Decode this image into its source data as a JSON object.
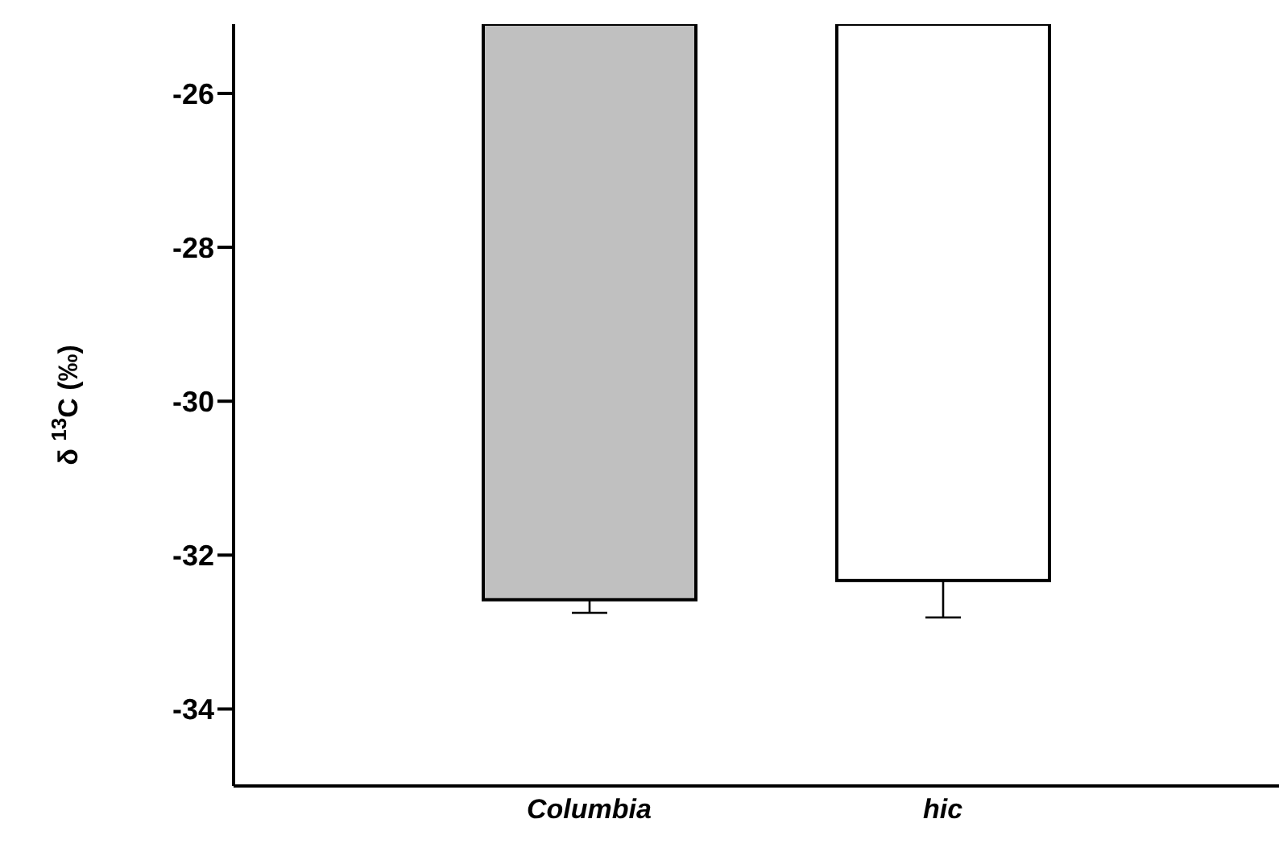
{
  "chart_data": {
    "type": "bar",
    "ylabel": "δ $^{13}$C (‰)",
    "categories": [
      "Columbia",
      "hic"
    ],
    "values": [
      -32.58,
      -32.33
    ],
    "colors": [
      "#c0c0c0",
      "#ffffff"
    ],
    "errors": [
      [
        -32.75,
        -32.58
      ],
      [
        -32.81,
        -32.33
      ]
    ],
    "ylim": [
      -35,
      -25.1
    ],
    "yticks": [
      -34,
      -32,
      -30,
      -28,
      -26
    ],
    "grid": false,
    "legend": false
  }
}
